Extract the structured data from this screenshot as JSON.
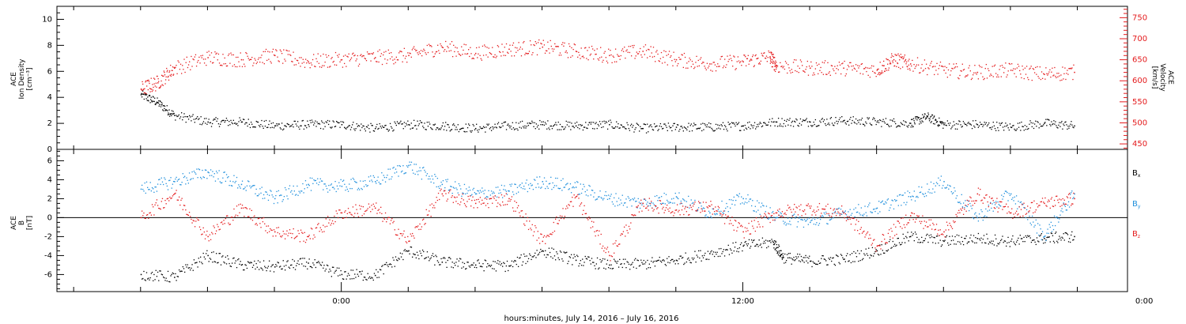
{
  "chart_data": [
    {
      "type": "scatter",
      "panel": "top",
      "ylabel_left": [
        "ACE",
        "Ion Density",
        "[cm⁻³]"
      ],
      "ylabel_right": [
        "ACE",
        "Velocity",
        "[km/s]"
      ],
      "ylim_left": [
        0,
        11
      ],
      "ylim_right": [
        437,
        777
      ],
      "yticks_left": [
        0,
        2,
        4,
        6,
        8,
        10
      ],
      "yticks_right": [
        450,
        500,
        550,
        600,
        650,
        700,
        750
      ],
      "series": [
        {
          "axis": "left",
          "color": "#000000",
          "points": [
            [
              -6.0,
              4.2
            ],
            [
              -5.5,
              3.6
            ],
            [
              -5.0,
              2.6
            ],
            [
              -4.0,
              2.1
            ],
            [
              -3.0,
              2.1
            ],
            [
              -2.0,
              1.8
            ],
            [
              -1.0,
              1.9
            ],
            [
              0.0,
              1.9
            ],
            [
              1.0,
              1.6
            ],
            [
              2.0,
              1.9
            ],
            [
              3.0,
              1.8
            ],
            [
              4.0,
              1.6
            ],
            [
              5.0,
              1.8
            ],
            [
              6.0,
              1.9
            ],
            [
              7.0,
              1.8
            ],
            [
              8.0,
              1.9
            ],
            [
              9.0,
              1.6
            ],
            [
              10.0,
              1.7
            ],
            [
              11.0,
              1.7
            ],
            [
              12.0,
              1.8
            ],
            [
              13.0,
              2.1
            ],
            [
              14.0,
              2.1
            ],
            [
              15.0,
              2.2
            ],
            [
              16.0,
              2.1
            ],
            [
              17.0,
              2.0
            ],
            [
              17.5,
              2.5
            ],
            [
              18.0,
              1.9
            ],
            [
              19.0,
              1.9
            ],
            [
              20.0,
              1.7
            ],
            [
              21.0,
              2.0
            ],
            [
              21.9,
              1.8
            ]
          ]
        },
        {
          "axis": "right",
          "color": "#e41a1c",
          "points": [
            [
              -6.0,
              580
            ],
            [
              -5.5,
              595
            ],
            [
              -5.0,
              630
            ],
            [
              -4.0,
              655
            ],
            [
              -3.0,
              650
            ],
            [
              -2.0,
              660
            ],
            [
              -1.0,
              645
            ],
            [
              0.0,
              650
            ],
            [
              1.0,
              655
            ],
            [
              2.0,
              660
            ],
            [
              3.0,
              680
            ],
            [
              4.0,
              665
            ],
            [
              5.0,
              675
            ],
            [
              6.0,
              680
            ],
            [
              7.0,
              670
            ],
            [
              8.0,
              660
            ],
            [
              9.0,
              670
            ],
            [
              10.0,
              650
            ],
            [
              11.0,
              640
            ],
            [
              12.0,
              645
            ],
            [
              12.8,
              657
            ],
            [
              13.0,
              635
            ],
            [
              14.0,
              630
            ],
            [
              15.0,
              630
            ],
            [
              16.0,
              625
            ],
            [
              16.5,
              650
            ],
            [
              17.0,
              640
            ],
            [
              18.0,
              625
            ],
            [
              19.0,
              620
            ],
            [
              20.0,
              625
            ],
            [
              21.0,
              615
            ],
            [
              21.9,
              620
            ]
          ]
        }
      ]
    },
    {
      "type": "scatter",
      "panel": "bottom",
      "ylabel": [
        "ACE",
        "B",
        "[nT]"
      ],
      "ylim": [
        -7.8,
        7.2
      ],
      "yticks": [
        -6,
        -4,
        -2,
        0,
        2,
        4,
        6
      ],
      "series": [
        {
          "name": "Bx",
          "label": "B",
          "label_sub": "x",
          "color": "#000000",
          "points": [
            [
              -6.0,
              -6.0
            ],
            [
              -5.0,
              -6.3
            ],
            [
              -4.0,
              -4.0
            ],
            [
              -3.0,
              -5.0
            ],
            [
              -2.0,
              -5.2
            ],
            [
              -1.0,
              -4.8
            ],
            [
              0.0,
              -6.0
            ],
            [
              1.0,
              -6.1
            ],
            [
              2.0,
              -3.5
            ],
            [
              3.0,
              -4.7
            ],
            [
              4.0,
              -5.0
            ],
            [
              5.0,
              -5.1
            ],
            [
              6.0,
              -3.5
            ],
            [
              7.0,
              -4.5
            ],
            [
              8.0,
              -5.0
            ],
            [
              9.0,
              -4.9
            ],
            [
              10.0,
              -4.5
            ],
            [
              11.0,
              -3.8
            ],
            [
              12.0,
              -3.0
            ],
            [
              12.9,
              -2.6
            ],
            [
              13.2,
              -4.2
            ],
            [
              14.0,
              -4.6
            ],
            [
              15.0,
              -4.4
            ],
            [
              16.0,
              -3.5
            ],
            [
              17.0,
              -2.0
            ],
            [
              18.0,
              -2.5
            ],
            [
              19.0,
              -2.2
            ],
            [
              20.0,
              -2.5
            ],
            [
              21.0,
              -2.2
            ],
            [
              21.9,
              -2.0
            ]
          ]
        },
        {
          "name": "By",
          "label": "B",
          "label_sub": "y",
          "color": "#1f8fdc",
          "points": [
            [
              -6.0,
              3.0
            ],
            [
              -5.0,
              3.8
            ],
            [
              -4.0,
              4.8
            ],
            [
              -3.0,
              3.5
            ],
            [
              -2.0,
              2.0
            ],
            [
              -1.0,
              3.5
            ],
            [
              0.0,
              3.3
            ],
            [
              1.0,
              3.8
            ],
            [
              2.0,
              5.5
            ],
            [
              3.0,
              3.5
            ],
            [
              4.0,
              2.5
            ],
            [
              5.0,
              2.8
            ],
            [
              6.0,
              3.8
            ],
            [
              7.0,
              3.2
            ],
            [
              8.0,
              2.0
            ],
            [
              9.0,
              1.5
            ],
            [
              10.0,
              2.2
            ],
            [
              11.0,
              0.5
            ],
            [
              12.0,
              2.0
            ],
            [
              13.0,
              0.0
            ],
            [
              14.0,
              -0.5
            ],
            [
              15.0,
              0.5
            ],
            [
              16.0,
              1.0
            ],
            [
              17.0,
              2.2
            ],
            [
              18.0,
              3.8
            ],
            [
              19.0,
              0.0
            ],
            [
              20.0,
              2.5
            ],
            [
              21.0,
              -2.0
            ],
            [
              21.9,
              2.5
            ]
          ]
        },
        {
          "name": "Bz",
          "label": "B",
          "label_sub": "z",
          "color": "#e41a1c",
          "points": [
            [
              -6.0,
              0.0
            ],
            [
              -5.0,
              2.5
            ],
            [
              -4.0,
              -2.0
            ],
            [
              -3.0,
              1.0
            ],
            [
              -2.0,
              -1.5
            ],
            [
              -1.0,
              -2.0
            ],
            [
              0.0,
              0.5
            ],
            [
              1.0,
              1.0
            ],
            [
              2.0,
              -2.5
            ],
            [
              3.0,
              2.5
            ],
            [
              4.0,
              1.5
            ],
            [
              5.0,
              2.0
            ],
            [
              6.0,
              -2.5
            ],
            [
              7.0,
              2.2
            ],
            [
              8.0,
              -4.0
            ],
            [
              9.0,
              1.5
            ],
            [
              10.0,
              0.8
            ],
            [
              11.0,
              1.2
            ],
            [
              12.0,
              -1.5
            ],
            [
              13.0,
              0.5
            ],
            [
              14.0,
              1.0
            ],
            [
              15.0,
              0.5
            ],
            [
              16.0,
              -3.0
            ],
            [
              17.0,
              0.2
            ],
            [
              18.0,
              -1.5
            ],
            [
              19.0,
              2.5
            ],
            [
              20.0,
              0.5
            ],
            [
              21.0,
              1.5
            ],
            [
              21.9,
              2.0
            ]
          ]
        }
      ]
    }
  ],
  "x_axis": {
    "range_hours": [
      -8.5,
      23.5
    ],
    "major_ticks": [
      0,
      12,
      24
    ],
    "tick_labels": [
      "0:00",
      "12:00",
      "0:00"
    ],
    "minor_tick_hours": 2,
    "label": "hours:minutes, July 14, 2016 – July 16, 2016"
  },
  "colors": {
    "black": "#000000",
    "red": "#e41a1c",
    "blue": "#1f8fdc",
    "axis": "#000000"
  }
}
